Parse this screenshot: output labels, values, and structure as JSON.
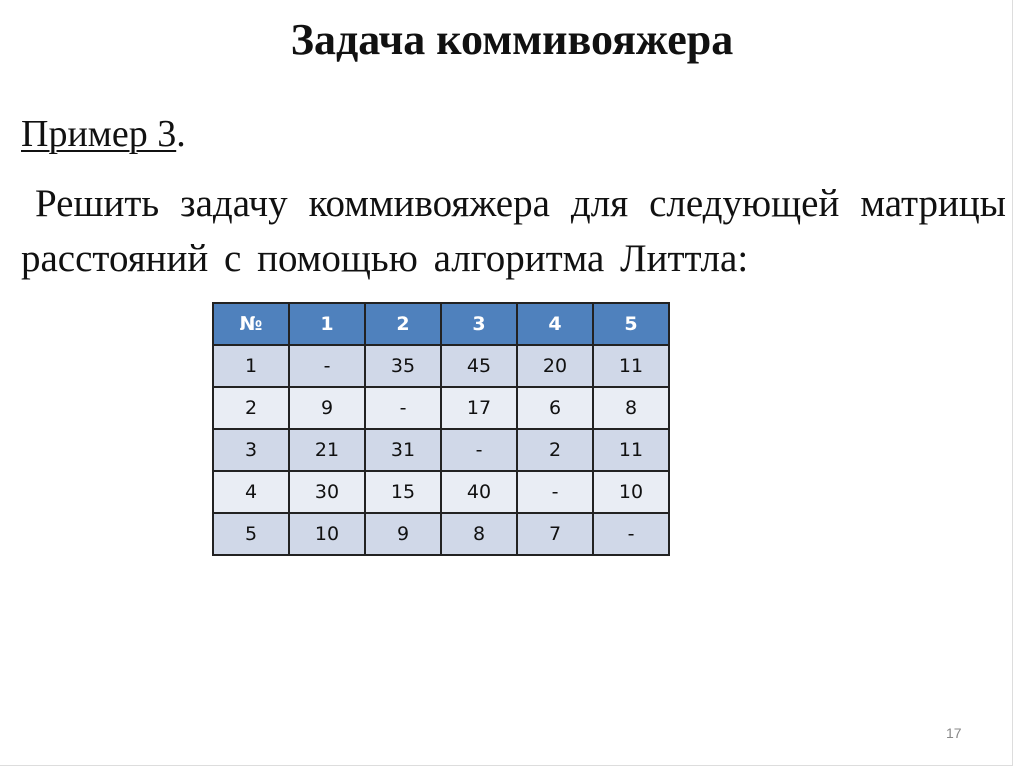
{
  "title": "Задача коммивояжера",
  "example_label": "Пример 3",
  "example_suffix": ".",
  "body_text": "Решить задачу коммивояжера для следующей матрицы расстояний с помощью алгоритма Литтла:",
  "table": {
    "headers": [
      "№",
      "1",
      "2",
      "3",
      "4",
      "5"
    ],
    "rows": [
      [
        "1",
        "-",
        "35",
        "45",
        "20",
        "11"
      ],
      [
        "2",
        "9",
        "-",
        "17",
        "6",
        "8"
      ],
      [
        "3",
        "21",
        "31",
        "-",
        "2",
        "11"
      ],
      [
        "4",
        "30",
        "15",
        "40",
        "-",
        "10"
      ],
      [
        "5",
        "10",
        "9",
        "8",
        "7",
        "-"
      ]
    ],
    "colors": {
      "header": "#4F81BD",
      "row_odd": "#D0D8E8",
      "row_even": "#E9EDF4"
    }
  },
  "page_number": "17"
}
